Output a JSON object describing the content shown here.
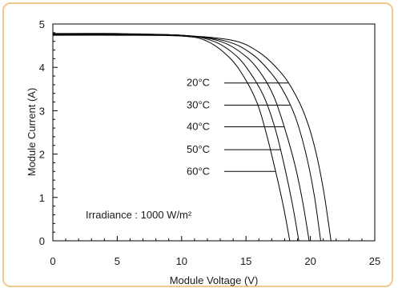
{
  "chart_data": {
    "type": "line",
    "title": "",
    "xlabel": "Module Voltage (V)",
    "ylabel": "Module Current (A)",
    "xlim": [
      0,
      25
    ],
    "ylim": [
      0,
      5
    ],
    "xticks": [
      0,
      5,
      10,
      15,
      20,
      25
    ],
    "yticks": [
      0,
      1,
      2,
      3,
      4,
      5
    ],
    "grid": false,
    "annotation": "Irradiance : 1000 W/m²",
    "series": [
      {
        "name": "20°C",
        "isc": 4.78,
        "voc": 21.6,
        "points": [
          [
            0,
            4.78
          ],
          [
            5,
            4.78
          ],
          [
            10,
            4.74
          ],
          [
            14,
            4.62
          ],
          [
            16,
            4.35
          ],
          [
            17.5,
            3.95
          ],
          [
            18.5,
            3.55
          ],
          [
            19.5,
            2.95
          ],
          [
            20.3,
            2.2
          ],
          [
            21.0,
            1.2
          ],
          [
            21.6,
            0
          ]
        ]
      },
      {
        "name": "30°C",
        "isc": 4.77,
        "voc": 20.8,
        "points": [
          [
            0,
            4.77
          ],
          [
            5,
            4.77
          ],
          [
            10,
            4.74
          ],
          [
            13.5,
            4.6
          ],
          [
            15.5,
            4.3
          ],
          [
            17,
            3.85
          ],
          [
            18,
            3.4
          ],
          [
            18.9,
            2.8
          ],
          [
            19.7,
            1.95
          ],
          [
            20.3,
            1.05
          ],
          [
            20.8,
            0
          ]
        ]
      },
      {
        "name": "40°C",
        "isc": 4.76,
        "voc": 19.9,
        "points": [
          [
            0,
            4.76
          ],
          [
            5,
            4.76
          ],
          [
            10,
            4.74
          ],
          [
            13,
            4.6
          ],
          [
            15,
            4.25
          ],
          [
            16.3,
            3.8
          ],
          [
            17.2,
            3.3
          ],
          [
            18.0,
            2.6
          ],
          [
            18.8,
            1.75
          ],
          [
            19.4,
            0.9
          ],
          [
            19.9,
            0
          ]
        ]
      },
      {
        "name": "50°C",
        "isc": 4.75,
        "voc": 19.1,
        "points": [
          [
            0,
            4.75
          ],
          [
            5,
            4.75
          ],
          [
            10,
            4.74
          ],
          [
            12.5,
            4.6
          ],
          [
            14.3,
            4.25
          ],
          [
            15.6,
            3.75
          ],
          [
            16.5,
            3.25
          ],
          [
            17.3,
            2.55
          ],
          [
            18.0,
            1.7
          ],
          [
            18.6,
            0.85
          ],
          [
            19.1,
            0
          ]
        ]
      },
      {
        "name": "60°C",
        "isc": 4.74,
        "voc": 18.4,
        "points": [
          [
            0,
            4.74
          ],
          [
            5,
            4.74
          ],
          [
            10,
            4.72
          ],
          [
            12,
            4.6
          ],
          [
            13.8,
            4.2
          ],
          [
            15.0,
            3.7
          ],
          [
            15.9,
            3.15
          ],
          [
            16.6,
            2.45
          ],
          [
            17.3,
            1.6
          ],
          [
            17.9,
            0.8
          ],
          [
            18.4,
            0
          ]
        ]
      }
    ],
    "legend_labels": [
      "20°C",
      "30°C",
      "40°C",
      "50°C",
      "60°C"
    ],
    "legend_placement": "inline-leaders"
  }
}
